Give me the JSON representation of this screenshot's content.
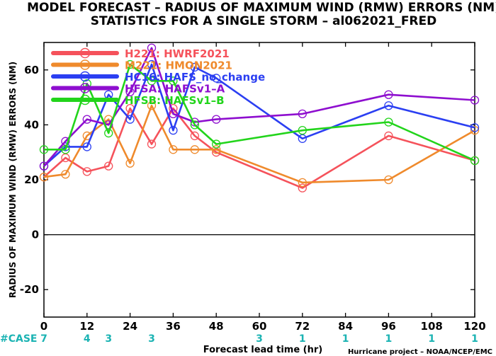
{
  "title_line1": "MODEL FORECAST – RADIUS OF MAXIMUM WIND (RMW) ERRORS (NM)",
  "title_line2": "STATISTICS FOR A SINGLE STORM – al062021_FRED",
  "credit": "Hurricane project – NOAA/NCEP/EMC",
  "case_label": "#CASE",
  "case_color": "#1bb3b3",
  "chart_data": {
    "type": "line",
    "xlabel": "Forecast lead time (hr)",
    "ylabel": "RADIUS OF MAXIMUM WIND (RMW) ERRORS (NM)",
    "xlim": [
      0,
      120
    ],
    "ylim": [
      -30,
      70
    ],
    "xticks": [
      0,
      12,
      24,
      36,
      48,
      60,
      72,
      84,
      96,
      108,
      120
    ],
    "yticks": [
      -20,
      0,
      20,
      40,
      60
    ],
    "zero_line": true,
    "grid": false,
    "cases": [
      {
        "x": 0,
        "n": "7"
      },
      {
        "x": 12,
        "n": "4"
      },
      {
        "x": 18,
        "n": "3"
      },
      {
        "x": 30,
        "n": "3"
      },
      {
        "x": 60,
        "n": "3"
      },
      {
        "x": 72,
        "n": "1"
      },
      {
        "x": 84,
        "n": "1"
      },
      {
        "x": 96,
        "n": "1"
      },
      {
        "x": 108,
        "n": "1"
      },
      {
        "x": 120,
        "n": "1"
      }
    ],
    "series": [
      {
        "name": "H221: HWRF2021",
        "color": "#f5525b",
        "x": [
          0,
          6,
          12,
          18,
          24,
          30,
          36,
          42,
          48,
          72,
          96,
          120
        ],
        "y": [
          21,
          28,
          23,
          25,
          46,
          33,
          46,
          36,
          30,
          17,
          36,
          27
        ]
      },
      {
        "name": "M221: HMON2021",
        "color": "#ef8a2c",
        "x": [
          0,
          6,
          12,
          18,
          24,
          30,
          36,
          42,
          48,
          72,
          96,
          120
        ],
        "y": [
          21,
          22,
          36,
          42,
          26,
          47,
          31,
          31,
          31,
          19,
          20,
          38
        ]
      },
      {
        "name": "HC16: HAFS_no_change",
        "color": "#2b3ff2",
        "x": [
          0,
          6,
          12,
          18,
          24,
          30,
          36,
          42,
          48,
          72,
          96,
          120
        ],
        "y": [
          25,
          32,
          32,
          51,
          42,
          62,
          38,
          61,
          57,
          35,
          47,
          39
        ]
      },
      {
        "name": "HFSA: HAFSv1–A",
        "color": "#8e0ecf",
        "x": [
          0,
          6,
          12,
          18,
          24,
          30,
          36,
          42,
          48,
          72,
          96,
          120
        ],
        "y": [
          25,
          34,
          42,
          40,
          52,
          68,
          44,
          41,
          42,
          44,
          51,
          49
        ]
      },
      {
        "name": "HFSB: HAFSv1–B",
        "color": "#22d41b",
        "x": [
          0,
          6,
          12,
          18,
          24,
          30,
          36,
          42,
          48,
          72,
          96,
          120
        ],
        "y": [
          31,
          31,
          55,
          37,
          62,
          56,
          56,
          40,
          33,
          38,
          41,
          27
        ]
      }
    ]
  }
}
